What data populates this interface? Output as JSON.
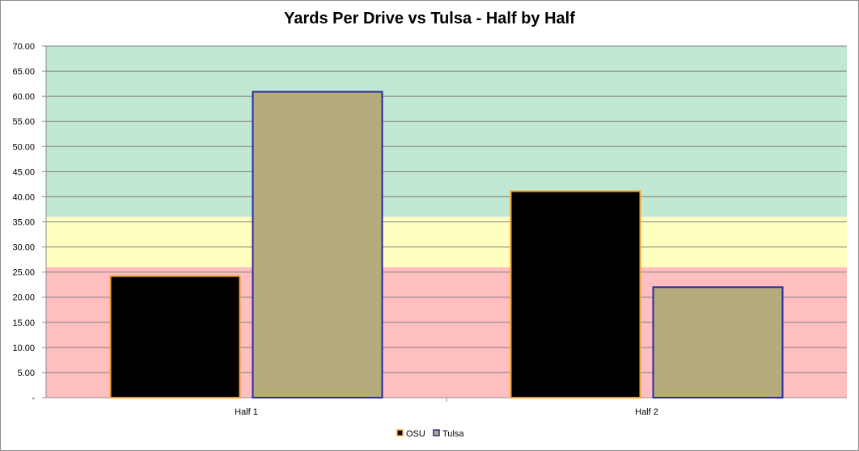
{
  "chart_data": {
    "type": "bar",
    "title": "Yards Per Drive vs Tulsa - Half by Half",
    "xlabel": "",
    "ylabel": "",
    "categories": [
      "Half 1",
      "Half 2"
    ],
    "series": [
      {
        "name": "OSU",
        "values": [
          24.2,
          41.1
        ],
        "fill": "#000000",
        "stroke": "#f0a030"
      },
      {
        "name": "Tulsa",
        "values": [
          60.9,
          22.0
        ],
        "fill": "#b5ab7d",
        "stroke": "#2a2a9c"
      }
    ],
    "ylim": [
      0,
      70
    ],
    "ytick_step": 5,
    "ytick_labels": [
      "-",
      "5.00",
      "10.00",
      "15.00",
      "20.00",
      "25.00",
      "30.00",
      "35.00",
      "40.00",
      "45.00",
      "50.00",
      "55.00",
      "60.00",
      "65.00",
      "70.00"
    ],
    "background_bands": [
      {
        "from": 0,
        "to": 26,
        "color": "#ffbfbf"
      },
      {
        "from": 26,
        "to": 36,
        "color": "#ffffc0"
      },
      {
        "from": 36,
        "to": 70,
        "color": "#c0e8d2"
      }
    ],
    "grid": true,
    "legend": "bottom"
  }
}
